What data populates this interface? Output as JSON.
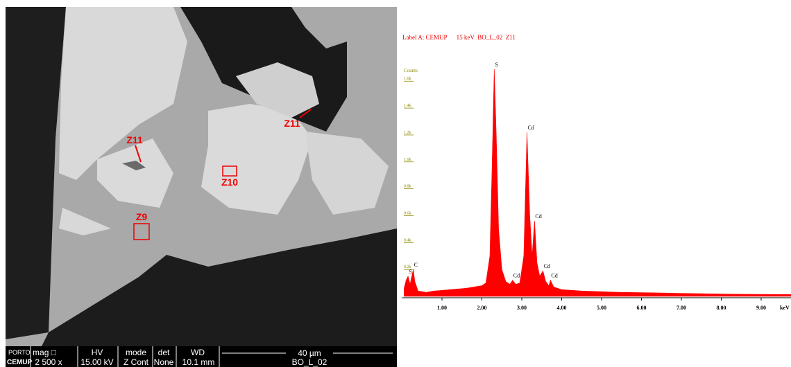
{
  "sem_image": {
    "labels": [
      {
        "text": "Z11"
      },
      {
        "text": "Z11"
      },
      {
        "text": "Z10"
      },
      {
        "text": "Z9"
      }
    ],
    "logo": [
      "PORTO",
      "CEMUP"
    ],
    "info_bar": {
      "headers": [
        "mag □",
        "HV",
        "mode",
        "det",
        "WD"
      ],
      "values": [
        "2 500 x",
        "15.00 kV",
        "Z Cont",
        "None",
        "10.1 mm"
      ],
      "scale_bar": "40 µm",
      "sample": "BO_L_02"
    }
  },
  "chart_data": {
    "type": "area",
    "title": "Label A: CEMUP      15 keV  BO_L_02  Z11",
    "y_label": "Counts",
    "x_label": "keV",
    "color": "#ff0000",
    "x": [
      0.05,
      0.1,
      0.15,
      0.2,
      0.25,
      0.28,
      0.32,
      0.4,
      0.6,
      0.8,
      1.0,
      1.2,
      1.4,
      1.6,
      1.8,
      2.0,
      2.1,
      2.2,
      2.25,
      2.31,
      2.36,
      2.42,
      2.5,
      2.6,
      2.7,
      2.77,
      2.85,
      2.95,
      3.05,
      3.13,
      3.2,
      3.26,
      3.32,
      3.38,
      3.45,
      3.53,
      3.6,
      3.68,
      3.72,
      3.8,
      4.0,
      4.5,
      5.0,
      5.5,
      6.0,
      6.5,
      7.0,
      7.5,
      8.0,
      8.5,
      9.0,
      9.5,
      9.8
    ],
    "values": [
      60,
      120,
      150,
      90,
      160,
      200,
      110,
      40,
      30,
      40,
      45,
      50,
      55,
      60,
      70,
      80,
      100,
      300,
      900,
      1690,
      1200,
      500,
      200,
      110,
      90,
      120,
      90,
      100,
      300,
      1220,
      600,
      300,
      560,
      250,
      150,
      190,
      110,
      80,
      120,
      70,
      50,
      40,
      35,
      30,
      28,
      25,
      22,
      20,
      18,
      16,
      15,
      14,
      14
    ],
    "annotations": [
      {
        "text": "S",
        "x": 2.31,
        "y": 1690
      },
      {
        "text": "Cd",
        "x": 3.13,
        "y": 1220
      },
      {
        "text": "Cd",
        "x": 3.32,
        "y": 560
      },
      {
        "text": "Cd",
        "x": 3.53,
        "y": 190
      },
      {
        "text": "Cd",
        "x": 3.72,
        "y": 120
      },
      {
        "text": "Cd",
        "x": 2.77,
        "y": 120
      },
      {
        "text": "C",
        "x": 0.28,
        "y": 200
      },
      {
        "text": "S",
        "x": 0.15,
        "y": 150
      }
    ],
    "xlim": [
      0,
      9.8
    ],
    "ylim": [
      0,
      1730
    ],
    "xticks": [
      {
        "value": 1,
        "label": "1.00"
      },
      {
        "value": 2,
        "label": "2.00"
      },
      {
        "value": 3,
        "label": "3.00"
      },
      {
        "value": 4,
        "label": "4.00"
      },
      {
        "value": 5,
        "label": "5.00"
      },
      {
        "value": 6,
        "label": "6.00"
      },
      {
        "value": 7,
        "label": "7.00"
      },
      {
        "value": 8,
        "label": "8.00"
      },
      {
        "value": 9,
        "label": "9.00"
      }
    ],
    "yticks": [
      {
        "value": 200,
        "label": "0.2k"
      },
      {
        "value": 400,
        "label": "0.4k"
      },
      {
        "value": 600,
        "label": "0.6k"
      },
      {
        "value": 800,
        "label": "0.8k"
      },
      {
        "value": 1000,
        "label": "1.0k"
      },
      {
        "value": 1200,
        "label": "1.2k"
      },
      {
        "value": 1400,
        "label": "1.4k"
      },
      {
        "value": 1600,
        "label": "1.6k"
      }
    ]
  }
}
